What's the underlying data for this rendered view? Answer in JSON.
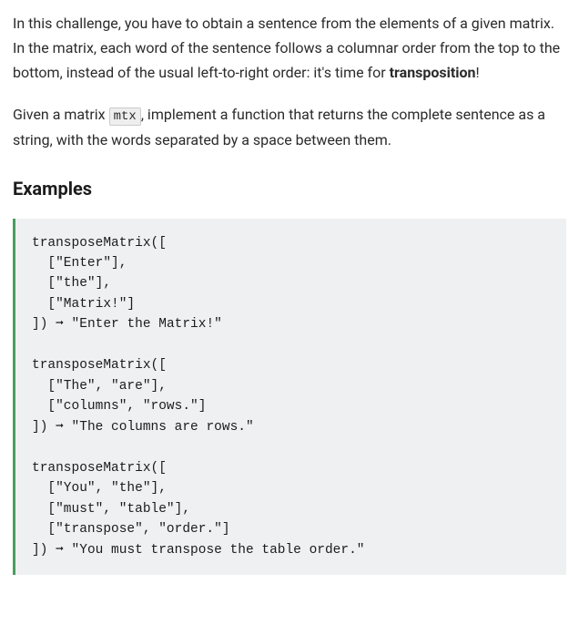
{
  "intro": {
    "para1_pre": "In this challenge, you have to obtain a sentence from the elements of a given matrix. In the matrix, each word of the sentence follows a columnar order from the top to the bottom, instead of the usual left-to-right order: it's time for ",
    "para1_strong": "transposition",
    "para1_post": "!",
    "para2_pre": "Given a matrix ",
    "para2_code": "mtx",
    "para2_post": ", implement a function that returns the complete sentence as a string, with the words separated by a space between them."
  },
  "examples": {
    "heading": "Examples",
    "code": "transposeMatrix([\n  [\"Enter\"],\n  [\"the\"],\n  [\"Matrix!\"]\n]) ➞ \"Enter the Matrix!\"\n\ntransposeMatrix([\n  [\"The\", \"are\"],\n  [\"columns\", \"rows.\"]\n]) ➞ \"The columns are rows.\"\n\ntransposeMatrix([\n  [\"You\", \"the\"],\n  [\"must\", \"table\"],\n  [\"transpose\", \"order.\"]\n]) ➞ \"You must transpose the table order.\""
  },
  "styles": {
    "code_bg": "#eff0f1",
    "code_border": "#4a9d5f",
    "inline_code_bg": "#eeeeee",
    "inline_code_border": "#cccccc",
    "text_color": "#2b2b2b",
    "heading_color": "#1c1c1c",
    "body_font_size": 16,
    "code_font_size": 14.5,
    "heading_font_size": 20
  }
}
